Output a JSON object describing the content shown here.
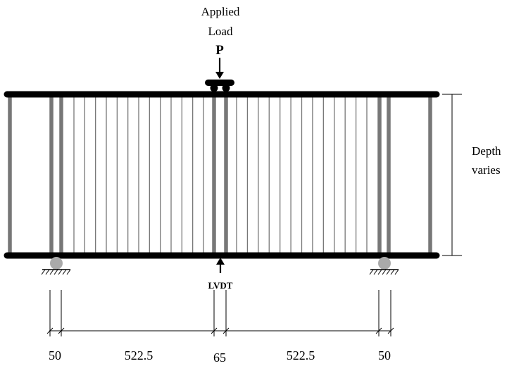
{
  "labels": {
    "applied_load_line1": "Applied",
    "applied_load_line2": "Load",
    "load_symbol": "P",
    "lvdt": "LVDT",
    "depth_line1": "Depth",
    "depth_line2": "varies"
  },
  "dimensions": [
    {
      "name": "support-overhang-left",
      "value": "50"
    },
    {
      "name": "span-left",
      "value": "522.5"
    },
    {
      "name": "load-zone",
      "value": "65"
    },
    {
      "name": "span-right",
      "value": "522.5"
    },
    {
      "name": "support-overhang-right",
      "value": "50"
    }
  ],
  "colors": {
    "chord": "#000000",
    "web": "#777777",
    "support": "#aaaaaa"
  },
  "icons": {
    "load_arrow": "down-arrow-icon",
    "lvdt_arrow": "up-arrow-icon",
    "support": "roller-support-icon"
  }
}
